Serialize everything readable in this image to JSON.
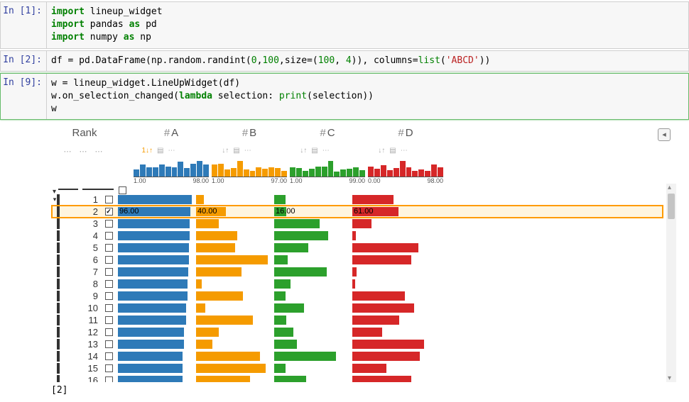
{
  "cells": [
    {
      "n": "1",
      "src_html": "<span class='kw'>import</span> lineup_widget\n<span class='kw'>import</span> pandas <span class='kw'>as</span> pd\n<span class='kw'>import</span> numpy <span class='kw'>as</span> np"
    },
    {
      "n": "2",
      "src_html": "df = pd.DataFrame(np.random.randint(<span class='num'>0</span>,<span class='num'>100</span>,size=(<span class='num'>100</span>, <span class='num'>4</span>)), columns=<span class='bi'>list</span>(<span class='str'>'ABCD'</span>))"
    },
    {
      "n": "9",
      "src_html": "w = lineup_widget.LineUpWidget(df)\nw.on_selection_changed(<span class='kw'>lambda</span> selection: <span class='bi'>print</span>(selection))\nw"
    }
  ],
  "widget": {
    "rank_label": "Rank",
    "columns": [
      {
        "key": "A",
        "label": "# A",
        "color": "#2e7ab8",
        "min": "1.00",
        "max": "98.00",
        "sort": true
      },
      {
        "key": "B",
        "label": "# B",
        "color": "#f59b00",
        "min": "1.00",
        "max": "97.00",
        "sort": false
      },
      {
        "key": "C",
        "label": "# C",
        "color": "#2ca02c",
        "min": "1.00",
        "max": "99.00",
        "sort": false
      },
      {
        "key": "D",
        "label": "# D",
        "color": "#d62728",
        "min": "0.00",
        "max": "98.00",
        "sort": false
      }
    ],
    "hist": {
      "A": [
        45,
        78,
        60,
        62,
        80,
        64,
        60,
        95,
        58,
        85,
        100,
        80
      ],
      "B": [
        78,
        82,
        45,
        55,
        100,
        48,
        40,
        60,
        52,
        60,
        54,
        38
      ],
      "C": [
        60,
        58,
        40,
        52,
        64,
        66,
        100,
        34,
        48,
        50,
        62,
        44
      ],
      "D": [
        64,
        50,
        72,
        42,
        58,
        100,
        60,
        40,
        48,
        36,
        80,
        62
      ]
    },
    "selected_index": 1,
    "selected_values": {
      "A": "96.00",
      "B": "40.00",
      "C": "16.00",
      "D": "61.00"
    },
    "rows": [
      {
        "r": 1,
        "A": 98,
        "B": 10,
        "C": 15,
        "D": 55
      },
      {
        "r": 2,
        "A": 96,
        "B": 40,
        "C": 16,
        "D": 61
      },
      {
        "r": 3,
        "A": 95,
        "B": 30,
        "C": 60,
        "D": 25
      },
      {
        "r": 4,
        "A": 95,
        "B": 55,
        "C": 72,
        "D": 5
      },
      {
        "r": 5,
        "A": 94,
        "B": 52,
        "C": 45,
        "D": 88
      },
      {
        "r": 6,
        "A": 94,
        "B": 95,
        "C": 18,
        "D": 78
      },
      {
        "r": 7,
        "A": 93,
        "B": 60,
        "C": 70,
        "D": 6
      },
      {
        "r": 8,
        "A": 92,
        "B": 8,
        "C": 22,
        "D": 4
      },
      {
        "r": 9,
        "A": 92,
        "B": 62,
        "C": 15,
        "D": 70
      },
      {
        "r": 10,
        "A": 91,
        "B": 12,
        "C": 40,
        "D": 82
      },
      {
        "r": 11,
        "A": 91,
        "B": 75,
        "C": 16,
        "D": 62
      },
      {
        "r": 12,
        "A": 88,
        "B": 30,
        "C": 25,
        "D": 40
      },
      {
        "r": 13,
        "A": 88,
        "B": 22,
        "C": 30,
        "D": 95
      },
      {
        "r": 14,
        "A": 86,
        "B": 85,
        "C": 82,
        "D": 90
      },
      {
        "r": 15,
        "A": 86,
        "B": 92,
        "C": 15,
        "D": 45
      },
      {
        "r": 16,
        "A": 86,
        "B": 72,
        "C": 42,
        "D": 78
      }
    ]
  },
  "stdout": "[2]"
}
